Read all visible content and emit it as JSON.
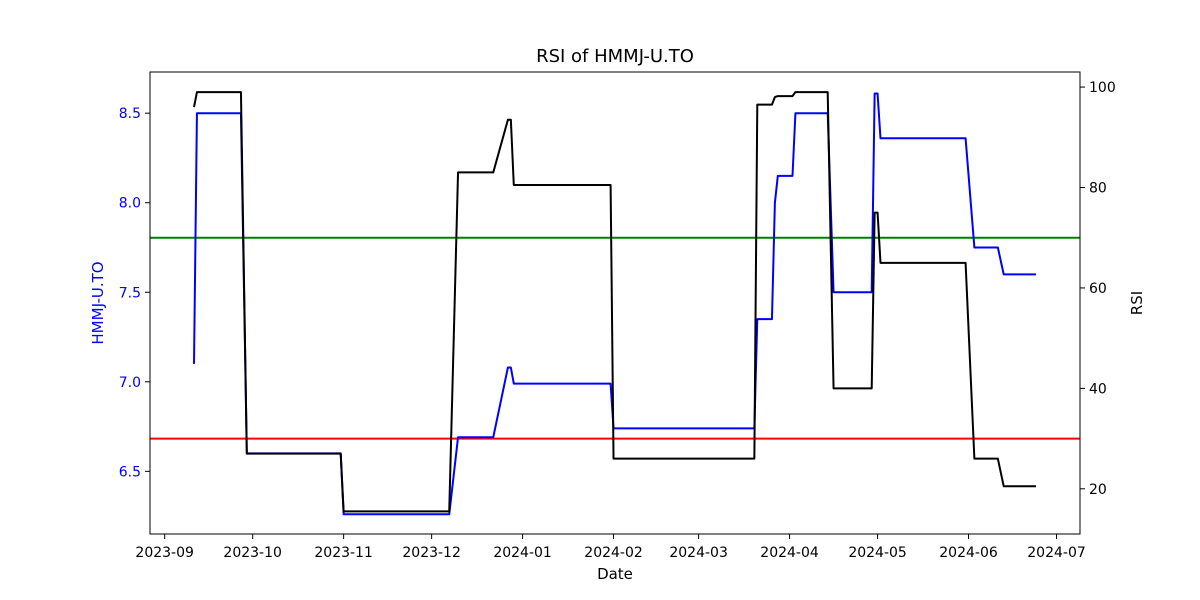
{
  "chart_data": {
    "type": "line",
    "title": "RSI of HMMJ-U.TO",
    "xlabel": "Date",
    "ylabel_left": "HMMJ-U.TO",
    "ylabel_right": "RSI",
    "x_ticks": [
      "2023-09",
      "2023-10",
      "2023-11",
      "2023-12",
      "2024-01",
      "2024-02",
      "2024-03",
      "2024-04",
      "2024-05",
      "2024-06",
      "2024-07"
    ],
    "xlim": [
      "2023-08-27",
      "2024-07-09"
    ],
    "ylim_left": [
      6.15,
      8.73
    ],
    "ylim_right": [
      11,
      103
    ],
    "yticks_left": [
      6.5,
      7.0,
      7.5,
      8.0,
      8.5
    ],
    "yticks_right": [
      20,
      40,
      60,
      80,
      100
    ],
    "colors": {
      "price": "#0000ff",
      "rsi": "#000000",
      "overbought": "#008000",
      "oversold": "#ff0000",
      "left_axis_text": "#0000ff"
    },
    "grid": false,
    "reference_lines": [
      {
        "axis": "right",
        "value": 70,
        "color": "#008000"
      },
      {
        "axis": "right",
        "value": 30,
        "color": "#ff0000"
      }
    ],
    "series": [
      {
        "axis": "left",
        "color": "#0000ff",
        "points": [
          [
            "2023-09-11",
            7.1
          ],
          [
            "2023-09-12",
            8.5
          ],
          [
            "2023-09-27",
            8.5
          ],
          [
            "2023-09-29",
            6.6
          ],
          [
            "2023-10-31",
            6.6
          ],
          [
            "2023-11-01",
            6.26
          ],
          [
            "2023-12-07",
            6.26
          ],
          [
            "2023-12-10",
            6.69
          ],
          [
            "2023-12-22",
            6.69
          ],
          [
            "2023-12-27",
            7.08
          ],
          [
            "2023-12-28",
            7.08
          ],
          [
            "2023-12-29",
            6.99
          ],
          [
            "2024-01-31",
            6.99
          ],
          [
            "2024-02-01",
            6.74
          ],
          [
            "2024-03-20",
            6.74
          ],
          [
            "2024-03-21",
            7.35
          ],
          [
            "2024-03-26",
            7.35
          ],
          [
            "2024-03-27",
            8.0
          ],
          [
            "2024-03-28",
            8.15
          ],
          [
            "2024-04-02",
            8.15
          ],
          [
            "2024-04-03",
            8.5
          ],
          [
            "2024-04-14",
            8.5
          ],
          [
            "2024-04-16",
            7.5
          ],
          [
            "2024-04-29",
            7.5
          ],
          [
            "2024-04-30",
            8.61
          ],
          [
            "2024-05-01",
            8.61
          ],
          [
            "2024-05-02",
            8.36
          ],
          [
            "2024-05-31",
            8.36
          ],
          [
            "2024-06-03",
            7.75
          ],
          [
            "2024-06-11",
            7.75
          ],
          [
            "2024-06-13",
            7.6
          ],
          [
            "2024-06-24",
            7.6
          ]
        ]
      },
      {
        "axis": "right",
        "color": "#000000",
        "points": [
          [
            "2023-09-11",
            96
          ],
          [
            "2023-09-12",
            99
          ],
          [
            "2023-09-27",
            99
          ],
          [
            "2023-09-29",
            27
          ],
          [
            "2023-10-31",
            27
          ],
          [
            "2023-11-01",
            15.5
          ],
          [
            "2023-12-07",
            15.5
          ],
          [
            "2023-12-10",
            83
          ],
          [
            "2023-12-22",
            83
          ],
          [
            "2023-12-27",
            93.5
          ],
          [
            "2023-12-28",
            93.5
          ],
          [
            "2023-12-29",
            80.5
          ],
          [
            "2024-01-31",
            80.5
          ],
          [
            "2024-02-01",
            26
          ],
          [
            "2024-03-20",
            26
          ],
          [
            "2024-03-21",
            96.5
          ],
          [
            "2024-03-26",
            96.5
          ],
          [
            "2024-03-27",
            98
          ],
          [
            "2024-03-28",
            98.2
          ],
          [
            "2024-04-02",
            98.2
          ],
          [
            "2024-04-03",
            99
          ],
          [
            "2024-04-14",
            99
          ],
          [
            "2024-04-16",
            40
          ],
          [
            "2024-04-29",
            40
          ],
          [
            "2024-04-30",
            75
          ],
          [
            "2024-05-01",
            75
          ],
          [
            "2024-05-02",
            65
          ],
          [
            "2024-05-31",
            65
          ],
          [
            "2024-06-03",
            26
          ],
          [
            "2024-06-11",
            26
          ],
          [
            "2024-06-13",
            20.5
          ],
          [
            "2024-06-24",
            20.5
          ]
        ]
      }
    ]
  }
}
